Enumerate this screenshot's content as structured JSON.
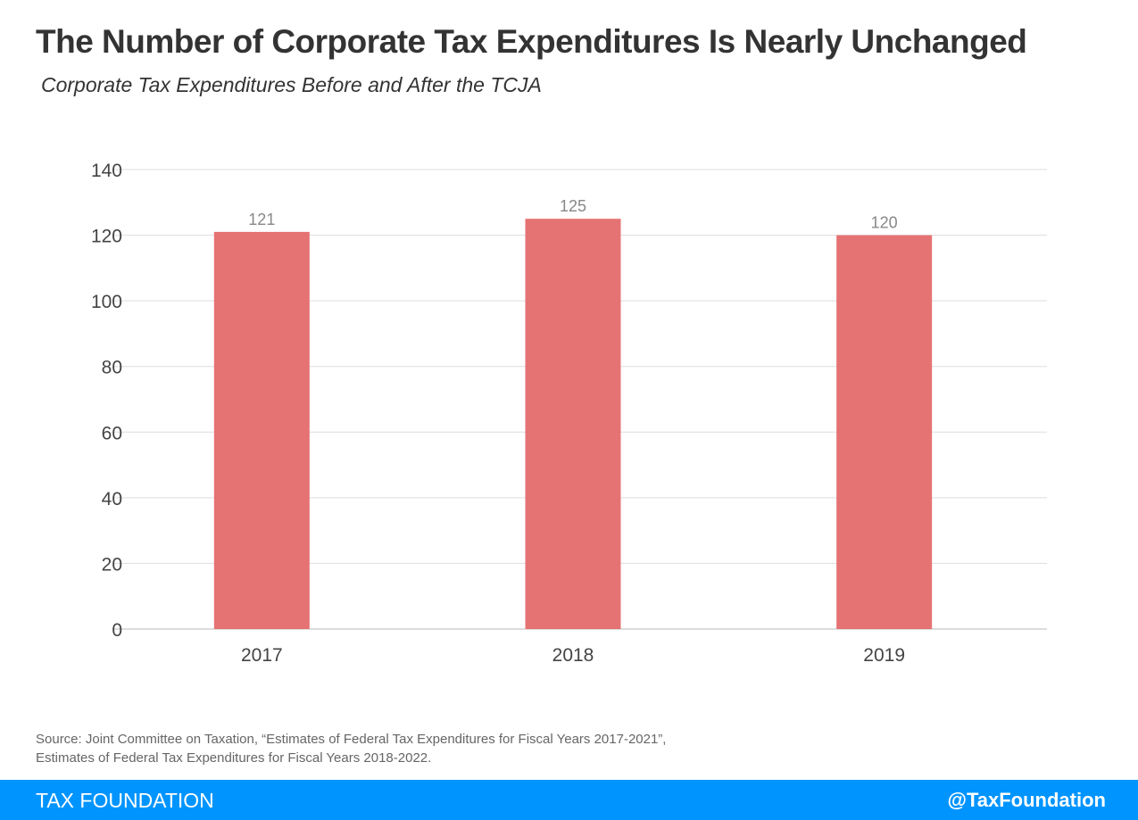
{
  "title": "The Number of Corporate Tax Expenditures Is Nearly Unchanged",
  "subtitle": "Corporate Tax Expenditures Before and After the TCJA",
  "source_lines": [
    "Source: Joint Committee on Taxation, “Estimates of Federal Tax Expenditures for Fiscal Years 2017-2021”,",
    "Estimates of Federal Tax Expenditures for Fiscal Years 2018-2022."
  ],
  "footer": {
    "brand": "TAX FOUNDATION",
    "handle": "@TaxFoundation",
    "color": "#0094ff"
  },
  "chart_data": {
    "type": "bar",
    "categories": [
      "2017",
      "2018",
      "2019"
    ],
    "values": [
      121,
      125,
      120
    ],
    "data_labels": [
      "121",
      "125",
      "120"
    ],
    "ylim": [
      0,
      140
    ],
    "yticks": [
      0,
      20,
      40,
      60,
      80,
      100,
      120,
      140
    ],
    "grid": true,
    "bar_color": "#e57373",
    "xlabel": "",
    "ylabel": ""
  }
}
